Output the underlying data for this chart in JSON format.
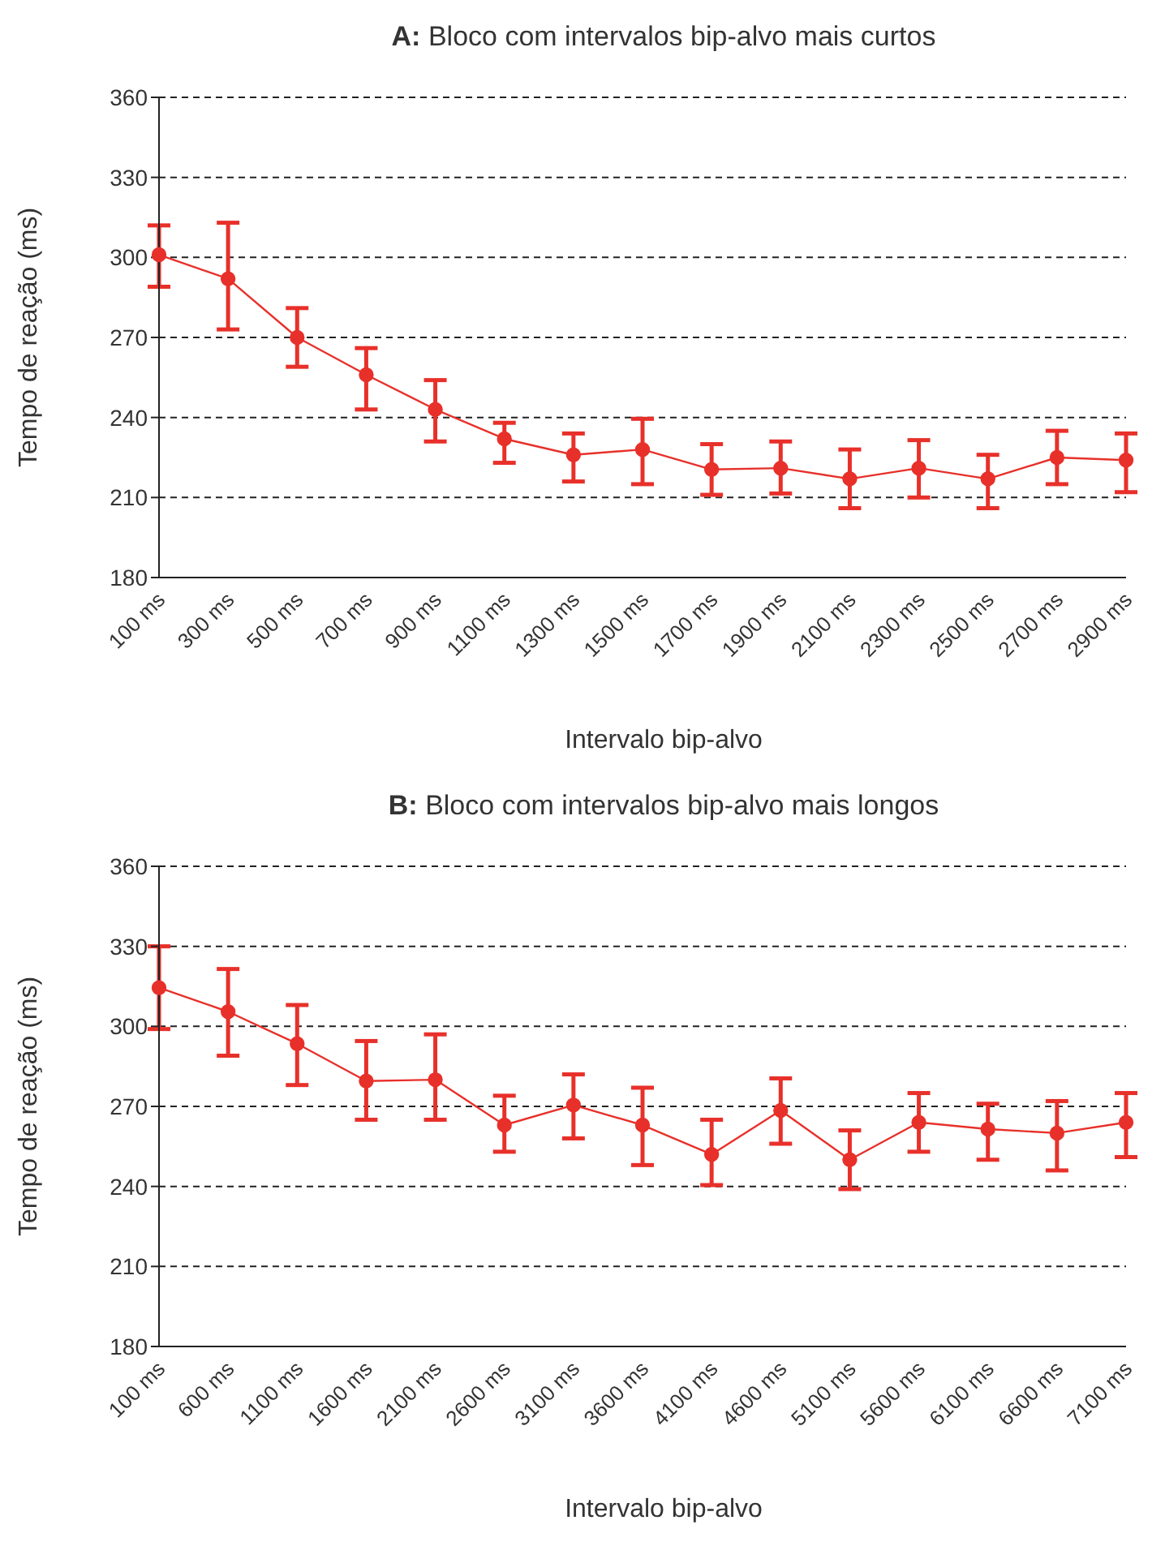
{
  "chart_data": [
    {
      "type": "line",
      "title": "A: Bloco com intervalos bip-alvo mais curtos",
      "xlabel": "Intervalo bip-alvo",
      "ylabel": "Tempo de reação (ms)",
      "categories": [
        "100 ms",
        "300 ms",
        "500 ms",
        "700 ms",
        "900 ms",
        "1100 ms",
        "1300 ms",
        "1500 ms",
        "1700 ms",
        "1900 ms",
        "2100 ms",
        "2300 ms",
        "2500 ms",
        "2700 ms",
        "2900 ms"
      ],
      "series": [
        {
          "color": "#e8302a",
          "values": [
            301,
            292,
            270,
            256,
            243,
            232,
            226,
            228,
            220.5,
            221,
            217,
            221,
            217,
            225,
            224
          ],
          "errors": [
            [
              289,
              312
            ],
            [
              273,
              313
            ],
            [
              259,
              281
            ],
            [
              243,
              266
            ],
            [
              231,
              254
            ],
            [
              223,
              238
            ],
            [
              216,
              234
            ],
            [
              215,
              239.5
            ],
            [
              211,
              230
            ],
            [
              211.5,
              231
            ],
            [
              206,
              228
            ],
            [
              210,
              231.5
            ],
            [
              206,
              226
            ],
            [
              215,
              235
            ],
            [
              212,
              234
            ]
          ]
        }
      ],
      "ylim": [
        180,
        360
      ],
      "yticks": [
        180,
        210,
        240,
        270,
        300,
        330,
        360
      ],
      "grid": "y",
      "marker": "circle",
      "line_style": "solid",
      "legend": false
    },
    {
      "type": "line",
      "title": "B: Bloco com intervalos bip-alvo mais longos",
      "xlabel": "Intervalo bip-alvo",
      "ylabel": "Tempo de reação (ms)",
      "categories": [
        "100 ms",
        "600 ms",
        "1100 ms",
        "1600 ms",
        "2100 ms",
        "2600 ms",
        "3100 ms",
        "3600 ms",
        "4100 ms",
        "4600 ms",
        "5100 ms",
        "5600 ms",
        "6100 ms",
        "6600 ms",
        "7100 ms"
      ],
      "series": [
        {
          "color": "#e8302a",
          "values": [
            314.5,
            305.5,
            293.5,
            279.5,
            280,
            263,
            270.5,
            263,
            252,
            268.5,
            250,
            264,
            261.5,
            260,
            264
          ],
          "errors": [
            [
              299,
              330
            ],
            [
              289,
              321.5
            ],
            [
              278,
              308
            ],
            [
              265,
              294.5
            ],
            [
              265,
              297
            ],
            [
              253,
              274
            ],
            [
              258,
              282
            ],
            [
              248,
              277
            ],
            [
              240.5,
              265
            ],
            [
              256,
              280.5
            ],
            [
              239,
              261
            ],
            [
              253,
              275
            ],
            [
              250,
              271
            ],
            [
              246,
              272
            ],
            [
              251,
              275
            ]
          ]
        }
      ],
      "ylim": [
        180,
        360
      ],
      "yticks": [
        180,
        210,
        240,
        270,
        300,
        330,
        360
      ],
      "grid": "y",
      "marker": "circle",
      "line_style": "solid",
      "legend": false
    }
  ]
}
